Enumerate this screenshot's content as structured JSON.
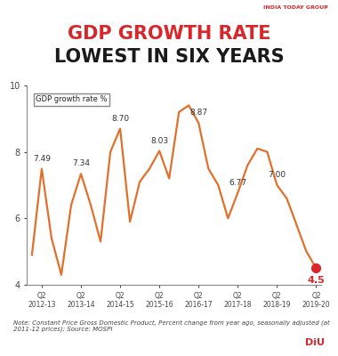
{
  "chart_data": {
    "type": "line",
    "title": "GDP GROWTH RATE",
    "subtitle": "LOWEST IN SIX YEARS",
    "y_label": "GDP growth rate %",
    "note": "Note: Constant Price Gross Domestic Product, Percent change from year ago, seasonally adjusted (at 2011-12 prices); Source: MOSPI",
    "publisher": "INDIA TODAY GROUP",
    "brand": "DiU",
    "categories": [
      null,
      "Q2\n2012-13",
      null,
      null,
      null,
      "Q2\n2013-14",
      null,
      null,
      null,
      "Q2\n2014-15",
      null,
      null,
      null,
      "Q2\n2015-16",
      null,
      null,
      null,
      "Q2\n2016-17",
      null,
      null,
      null,
      "Q2\n2017-18",
      null,
      null,
      null,
      "Q2\n2018-19",
      null,
      null,
      null,
      "Q2\n2019-20"
    ],
    "values": [
      4.9,
      7.49,
      5.4,
      4.3,
      6.4,
      7.34,
      6.4,
      5.3,
      8.0,
      8.7,
      5.9,
      7.1,
      7.5,
      8.03,
      7.2,
      9.2,
      9.4,
      8.87,
      7.5,
      7.0,
      6.0,
      6.77,
      7.6,
      8.1,
      8.0,
      7.0,
      6.6,
      5.8,
      5.0,
      4.5
    ],
    "value_labels": [
      null,
      "7.49",
      null,
      null,
      null,
      "7.34",
      null,
      null,
      null,
      "8.70",
      null,
      null,
      null,
      "8.03",
      null,
      null,
      null,
      "8.87",
      null,
      null,
      null,
      "6.77",
      null,
      null,
      null,
      "7.00",
      null,
      null,
      null,
      "4.5"
    ],
    "data_labels": true,
    "color": "#e0702a",
    "ylim": [
      4,
      10
    ],
    "yticks": [
      4,
      6,
      8,
      10
    ],
    "grid": false
  }
}
